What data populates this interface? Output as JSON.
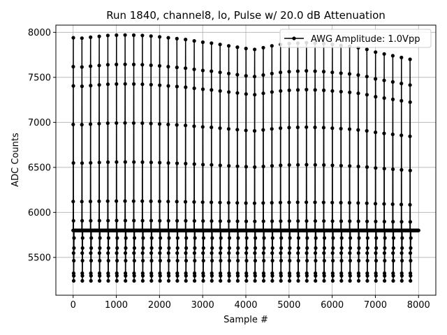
{
  "chart_data": {
    "type": "line",
    "title": "Run 1840, channel8, lo, Pulse w/ 20.0 dB Attenuation",
    "xlabel": "Sample #",
    "ylabel": "ADC Counts",
    "xlim": [
      -400,
      8400
    ],
    "ylim": [
      5080,
      8080
    ],
    "xticks": [
      0,
      1000,
      2000,
      3000,
      4000,
      5000,
      6000,
      7000,
      8000
    ],
    "yticks": [
      5500,
      6000,
      6500,
      7000,
      7500,
      8000
    ],
    "grid": true,
    "legend_position": "top-right",
    "line_color": "#000000",
    "series": [
      {
        "name": "AWG Amplitude: 1.0Vpp",
        "baseline": 5800,
        "pulse_period_samples": 200,
        "pulse_count": 40,
        "pulse_start_sample": 0,
        "pulse_peaks": [
          7940,
          7935,
          7945,
          7955,
          7965,
          7968,
          7970,
          7968,
          7965,
          7958,
          7950,
          7940,
          7930,
          7920,
          7905,
          7890,
          7880,
          7865,
          7850,
          7835,
          7820,
          7810,
          7830,
          7850,
          7865,
          7875,
          7880,
          7885,
          7880,
          7875,
          7865,
          7855,
          7845,
          7830,
          7810,
          7780,
          7760,
          7740,
          7720,
          7700
        ],
        "pulse_minimum": 5240
      }
    ]
  }
}
